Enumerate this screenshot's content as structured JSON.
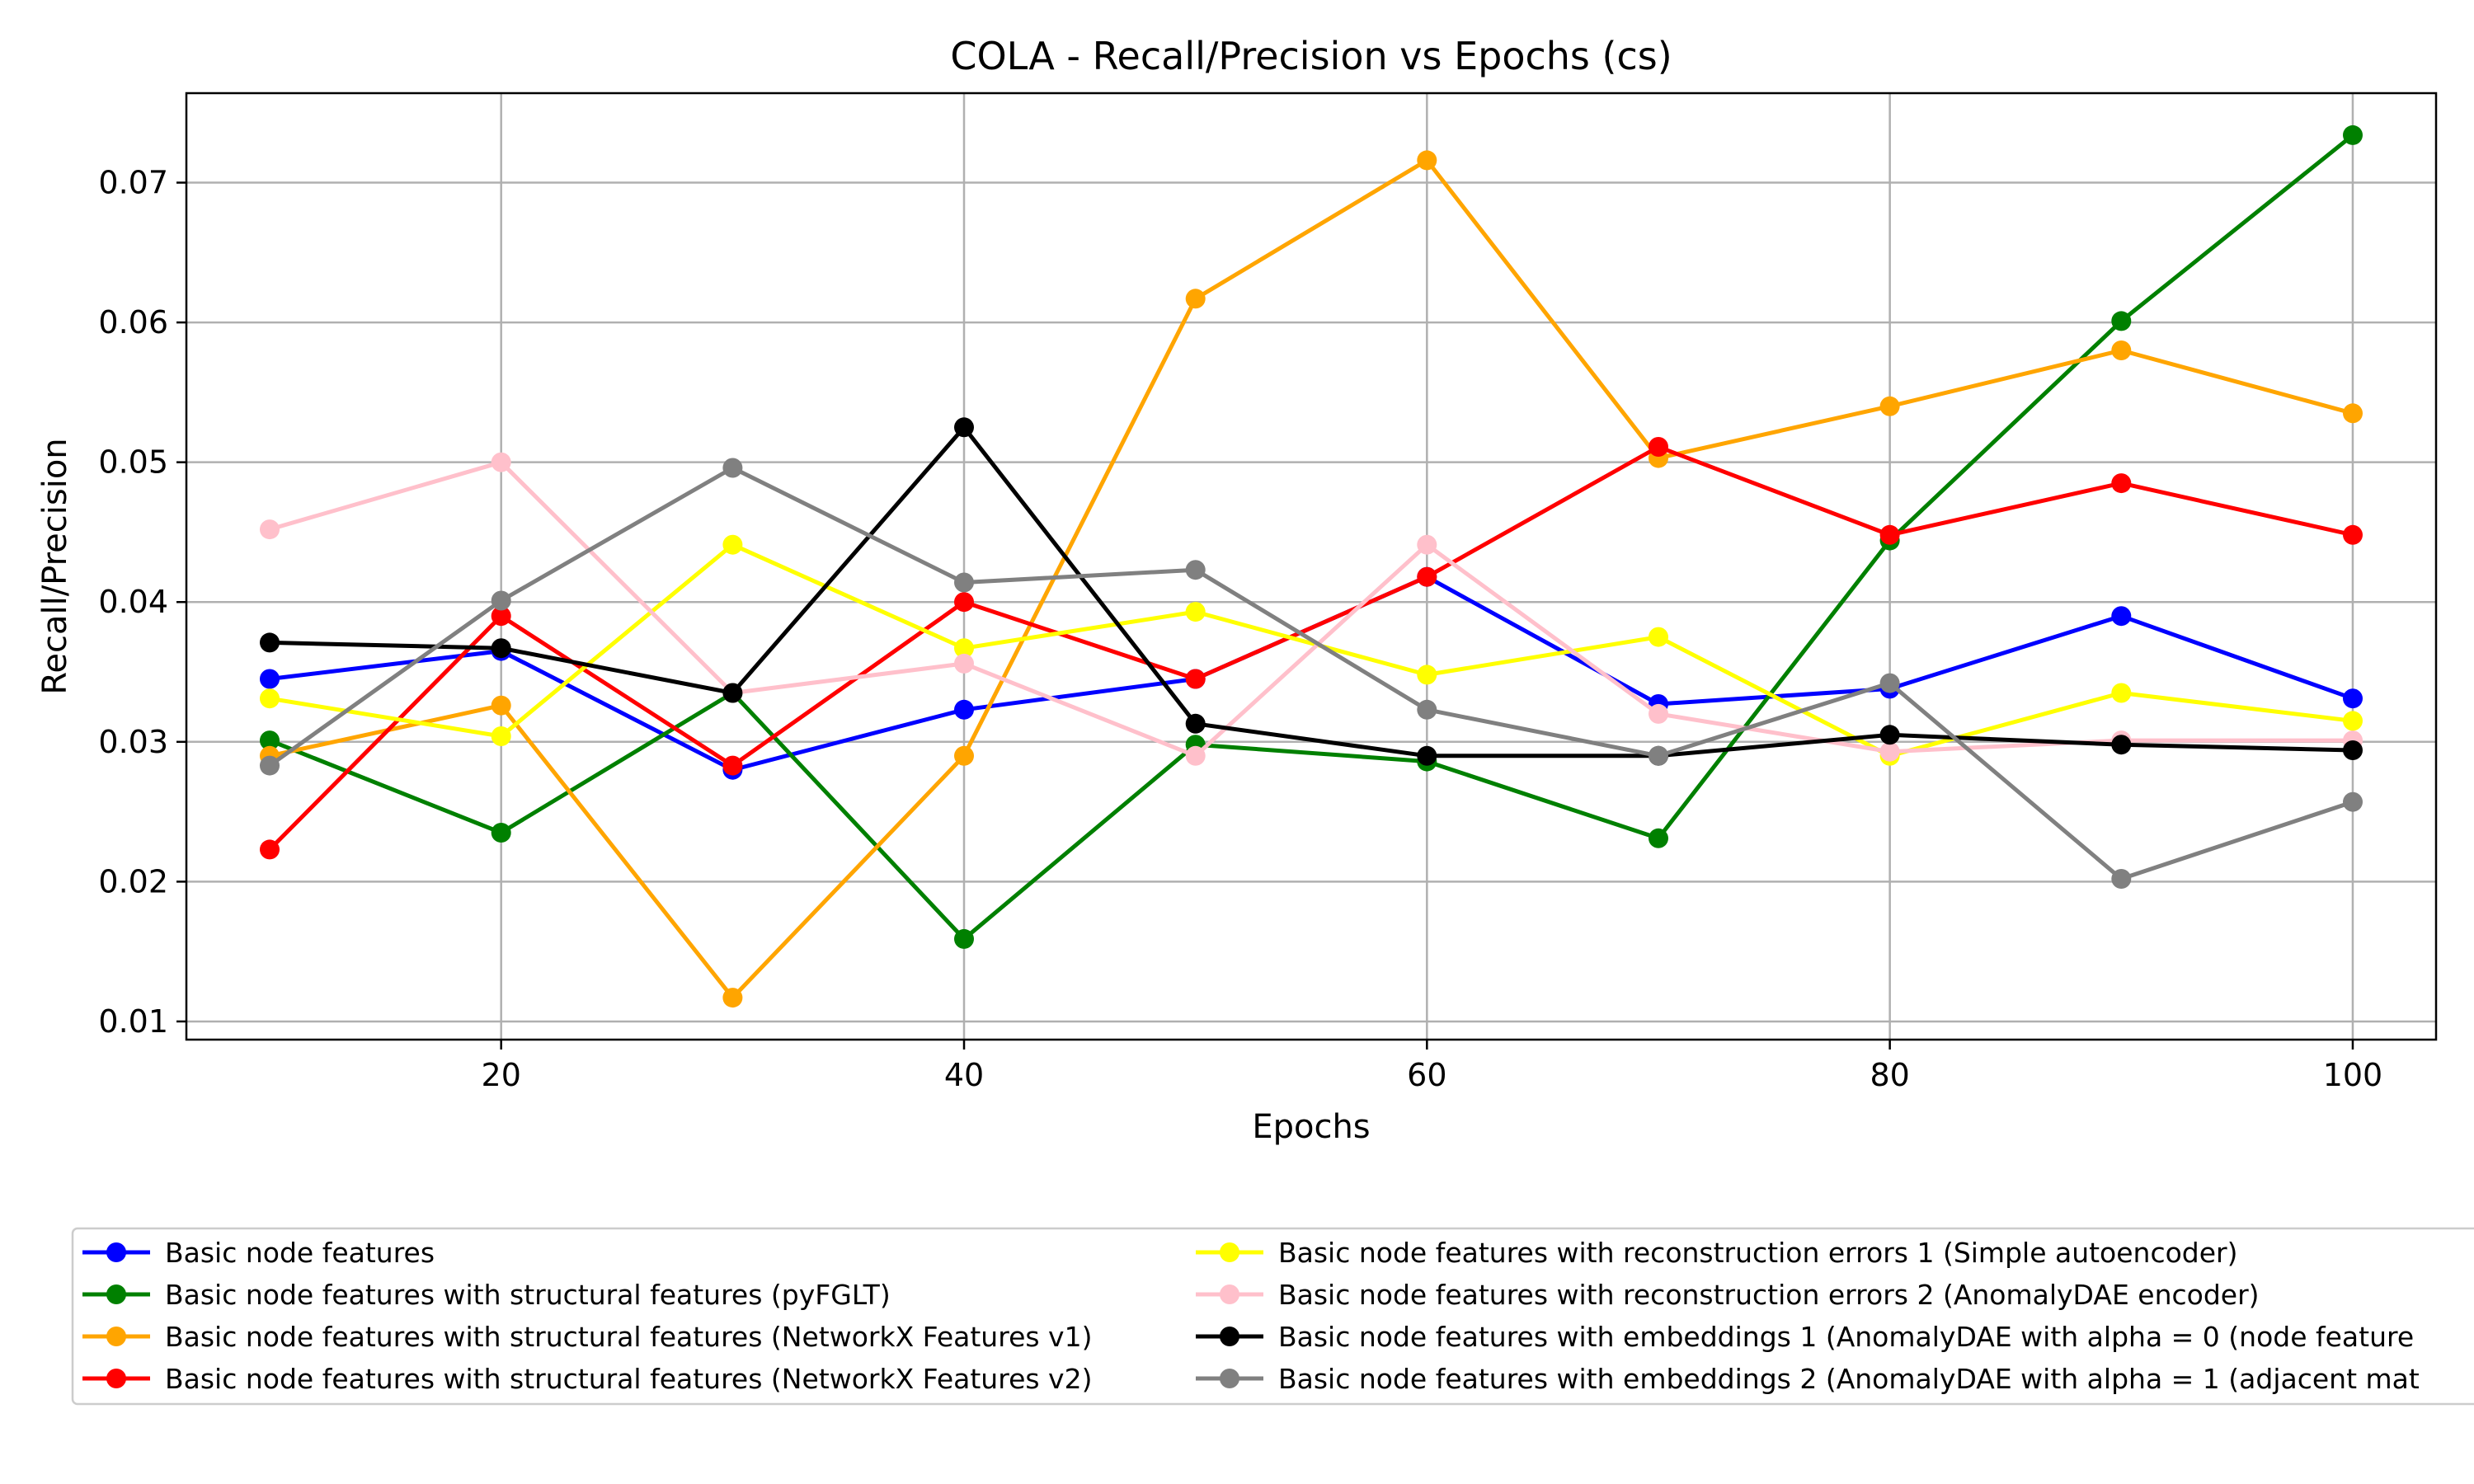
{
  "chart_data": {
    "type": "line",
    "title": "COLA - Recall/Precision vs Epochs (cs)",
    "xlabel": "Epochs",
    "ylabel": "Recall/Precision",
    "x": [
      10,
      20,
      30,
      40,
      50,
      60,
      70,
      80,
      90,
      100
    ],
    "xlim": [
      6.4,
      103.6
    ],
    "ylim": [
      0.0087,
      0.0764
    ],
    "xticks": [
      "20",
      "40",
      "60",
      "80",
      "100"
    ],
    "xtick_values": [
      20,
      40,
      60,
      80,
      100
    ],
    "yticks": [
      "0.01",
      "0.02",
      "0.03",
      "0.04",
      "0.05",
      "0.06",
      "0.07"
    ],
    "ytick_values": [
      0.01,
      0.02,
      0.03,
      0.04,
      0.05,
      0.06,
      0.07
    ],
    "grid": true,
    "legend_placement": "below",
    "series": [
      {
        "name": "Basic node features",
        "color": "#0000ff",
        "values": [
          0.0345,
          0.0365,
          0.028,
          0.0323,
          0.0345,
          0.0418,
          0.0327,
          0.0338,
          0.039,
          0.0331
        ]
      },
      {
        "name": "Basic node features with structural features (pyFGLT)",
        "color": "#008000",
        "values": [
          0.0301,
          0.0235,
          0.0335,
          0.0159,
          0.0298,
          0.0286,
          0.0231,
          0.0444,
          0.0601,
          0.0734
        ]
      },
      {
        "name": "Basic node features with structural features (NetworkX Features v1)",
        "color": "#ffa500",
        "values": [
          0.029,
          0.0326,
          0.0117,
          0.029,
          0.0617,
          0.0716,
          0.0503,
          0.054,
          0.058,
          0.0535
        ]
      },
      {
        "name": "Basic node features with structural features (NetworkX Features v2)",
        "color": "#ff0000",
        "values": [
          0.0223,
          0.039,
          0.0283,
          0.04,
          0.0345,
          0.0418,
          0.0511,
          0.0448,
          0.0485,
          0.0448
        ]
      },
      {
        "name": "Basic node features with reconstruction errors 1 (Simple autoencoder)",
        "color": "#ffff00",
        "values": [
          0.0331,
          0.0304,
          0.0441,
          0.0367,
          0.0393,
          0.0348,
          0.0375,
          0.029,
          0.0335,
          0.0315
        ]
      },
      {
        "name": "Basic node features with reconstruction errors 2 (AnomalyDAE encoder)",
        "color": "#ffc0cb",
        "values": [
          0.0452,
          0.05,
          0.0335,
          0.0356,
          0.029,
          0.0441,
          0.032,
          0.0293,
          0.0301,
          0.0301
        ]
      },
      {
        "name": "Basic node features with embeddings 1 (AnomalyDAE with alpha = 0 (node feature",
        "color": "#000000",
        "values": [
          0.0371,
          0.0367,
          0.0335,
          0.0525,
          0.0313,
          0.029,
          0.029,
          0.0305,
          0.0298,
          0.0294
        ]
      },
      {
        "name": "Basic node features with embeddings 2 (AnomalyDAE with alpha = 1 (adjacent mat",
        "color": "#808080",
        "values": [
          0.0283,
          0.0401,
          0.0496,
          0.0414,
          0.0423,
          0.0323,
          0.029,
          0.0342,
          0.0202,
          0.0257
        ]
      }
    ]
  }
}
